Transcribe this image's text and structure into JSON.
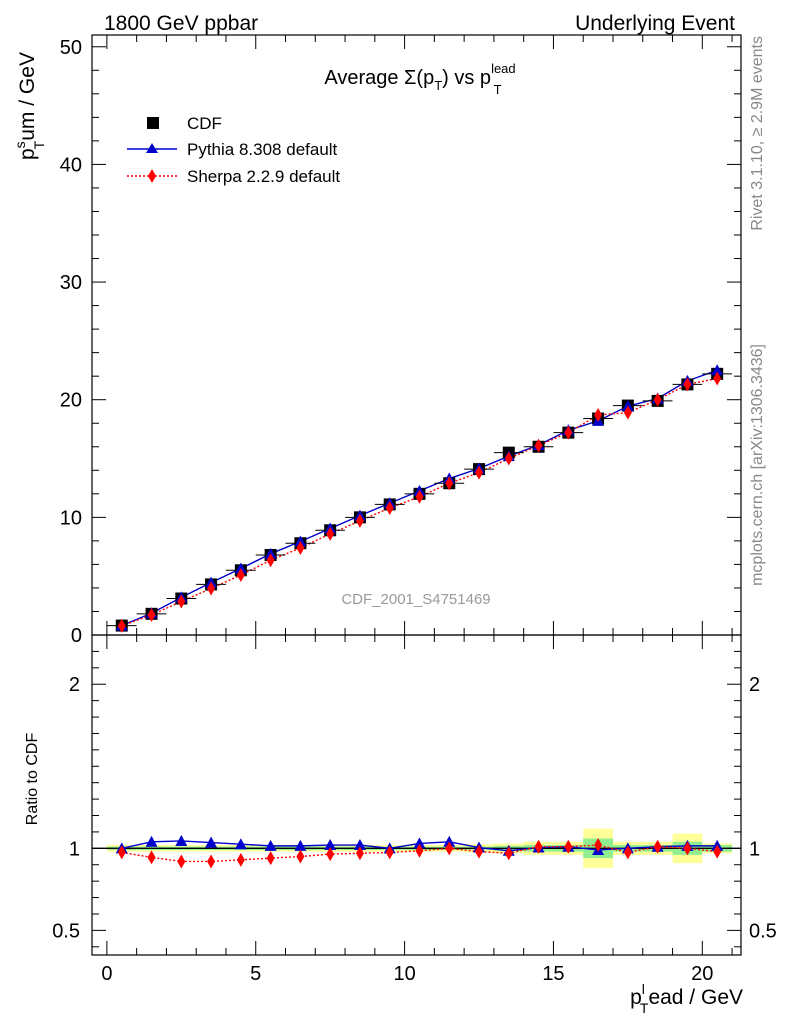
{
  "header": {
    "left": "1800 GeV ppbar",
    "right": "Underlying Event"
  },
  "side_text": {
    "rivet": "Rivet 3.1.10, ≥ 2.9M events",
    "mcplots": "mcplots.cern.ch [arXiv:1306.3436]"
  },
  "analysis_id": "CDF_2001_S4751469",
  "main_plot": {
    "title_main": "Average Σ(p",
    "title_sub1": "T",
    "title_mid": ") vs p",
    "title_sup": "lead",
    "title_sub2": "T",
    "ylabel_main": "p",
    "ylabel_sup": "s",
    "ylabel_sub": "T",
    "ylabel_rest": "um / GeV"
  },
  "ratio_plot": {
    "ylabel": "Ratio to CDF"
  },
  "xaxis": {
    "label_main": "p",
    "label_sup": "l",
    "label_sub": "T",
    "label_rest": "ead / GeV"
  },
  "legend": {
    "cdf": "CDF",
    "pythia": "Pythia 8.308 default",
    "sherpa": "Sherpa 2.2.9 default"
  },
  "colors": {
    "cdf": "#000000",
    "pythia": "#0000cc",
    "sherpa": "#ff0000",
    "band_inner": "#90ee90",
    "band_outer": "#ffff99"
  },
  "chart_data": [
    {
      "type": "line",
      "panel": "main",
      "xlim": [
        -0.5,
        21.3
      ],
      "ylim": [
        0,
        51
      ],
      "xticks": [
        0,
        5,
        10,
        15,
        20
      ],
      "yticks": [
        0,
        10,
        20,
        30,
        40,
        50
      ],
      "x": [
        0.5,
        1.5,
        2.5,
        3.5,
        4.5,
        5.5,
        6.5,
        7.5,
        8.5,
        9.5,
        10.5,
        11.5,
        12.5,
        13.5,
        14.5,
        15.5,
        16.5,
        17.5,
        18.5,
        19.5,
        20.5
      ],
      "series": [
        {
          "name": "CDF",
          "values": [
            0.8,
            1.8,
            3.1,
            4.3,
            5.5,
            6.8,
            7.8,
            8.9,
            10.0,
            11.1,
            12.0,
            12.9,
            14.1,
            15.5,
            16.0,
            17.2,
            18.4,
            19.5,
            19.9,
            21.3,
            22.2
          ]
        },
        {
          "name": "Pythia 8.308 default",
          "values": [
            0.8,
            1.85,
            3.2,
            4.45,
            5.65,
            6.9,
            7.95,
            9.05,
            10.15,
            11.2,
            12.25,
            13.3,
            14.15,
            15.2,
            16.15,
            17.4,
            18.2,
            19.45,
            20.1,
            21.6,
            22.5
          ]
        },
        {
          "name": "Sherpa 2.2.9 default",
          "values": [
            0.78,
            1.7,
            2.85,
            3.95,
            5.1,
            6.35,
            7.4,
            8.6,
            9.7,
            10.8,
            11.75,
            12.9,
            13.8,
            15.0,
            16.1,
            17.2,
            18.7,
            18.9,
            20.0,
            21.3,
            21.8
          ]
        }
      ]
    },
    {
      "type": "line",
      "panel": "ratio",
      "ylabel": "Ratio to CDF",
      "ylim": [
        0.35,
        2.3
      ],
      "yticks": [
        0.5,
        1,
        2
      ],
      "x": [
        0.5,
        1.5,
        2.5,
        3.5,
        4.5,
        5.5,
        6.5,
        7.5,
        8.5,
        9.5,
        10.5,
        11.5,
        12.5,
        13.5,
        14.5,
        15.5,
        16.5,
        17.5,
        18.5,
        19.5,
        20.5
      ],
      "band_inner": [
        0.01,
        0.01,
        0.01,
        0.01,
        0.01,
        0.01,
        0.01,
        0.01,
        0.01,
        0.01,
        0.01,
        0.01,
        0.01,
        0.015,
        0.02,
        0.02,
        0.06,
        0.02,
        0.02,
        0.04,
        0.02
      ],
      "band_outer": [
        0.02,
        0.02,
        0.02,
        0.02,
        0.02,
        0.02,
        0.02,
        0.02,
        0.02,
        0.02,
        0.02,
        0.02,
        0.025,
        0.03,
        0.04,
        0.04,
        0.12,
        0.04,
        0.04,
        0.09,
        0.03
      ],
      "series": [
        {
          "name": "Pythia 8.308 default",
          "values": [
            1.0,
            1.04,
            1.045,
            1.035,
            1.025,
            1.015,
            1.015,
            1.02,
            1.02,
            1.0,
            1.03,
            1.04,
            1.005,
            0.985,
            1.005,
            1.01,
            0.99,
            1.0,
            1.01,
            1.015,
            1.015
          ]
        },
        {
          "name": "Sherpa 2.2.9 default",
          "values": [
            0.975,
            0.945,
            0.92,
            0.92,
            0.93,
            0.94,
            0.95,
            0.965,
            0.97,
            0.975,
            0.985,
            1.0,
            0.98,
            0.97,
            1.01,
            1.01,
            1.02,
            0.975,
            1.01,
            1.0,
            0.98
          ]
        }
      ]
    }
  ]
}
